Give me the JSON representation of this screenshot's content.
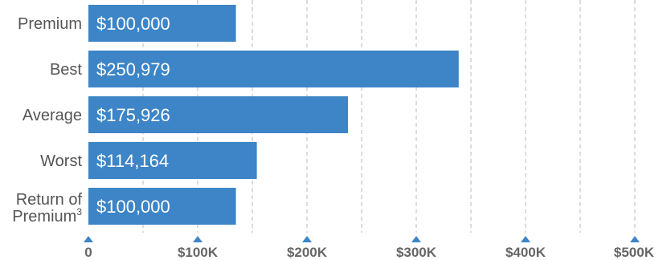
{
  "chart_data": {
    "type": "bar",
    "orientation": "horizontal",
    "categories": [
      "Premium",
      "Best",
      "Average",
      "Worst",
      "Return of Premium"
    ],
    "category_superscripts": [
      "",
      "",
      "",
      "",
      "3"
    ],
    "values": [
      100000,
      250979,
      175926,
      114164,
      100000
    ],
    "data_labels": [
      "$100,000",
      "$250,979",
      "$175,926",
      "$114,164",
      "$100,000"
    ],
    "xlim": [
      0,
      500000
    ],
    "x_ticks": [
      0,
      100000,
      200000,
      300000,
      400000,
      500000
    ],
    "x_tick_labels": [
      "0",
      "$100K",
      "$200K",
      "$300K",
      "$400K",
      "$500K"
    ],
    "grid": "vertical-dashed",
    "bar_color": "#3d85c6",
    "tick_marker_color": "#3d85c6",
    "title": "",
    "xlabel": "",
    "ylabel": ""
  }
}
